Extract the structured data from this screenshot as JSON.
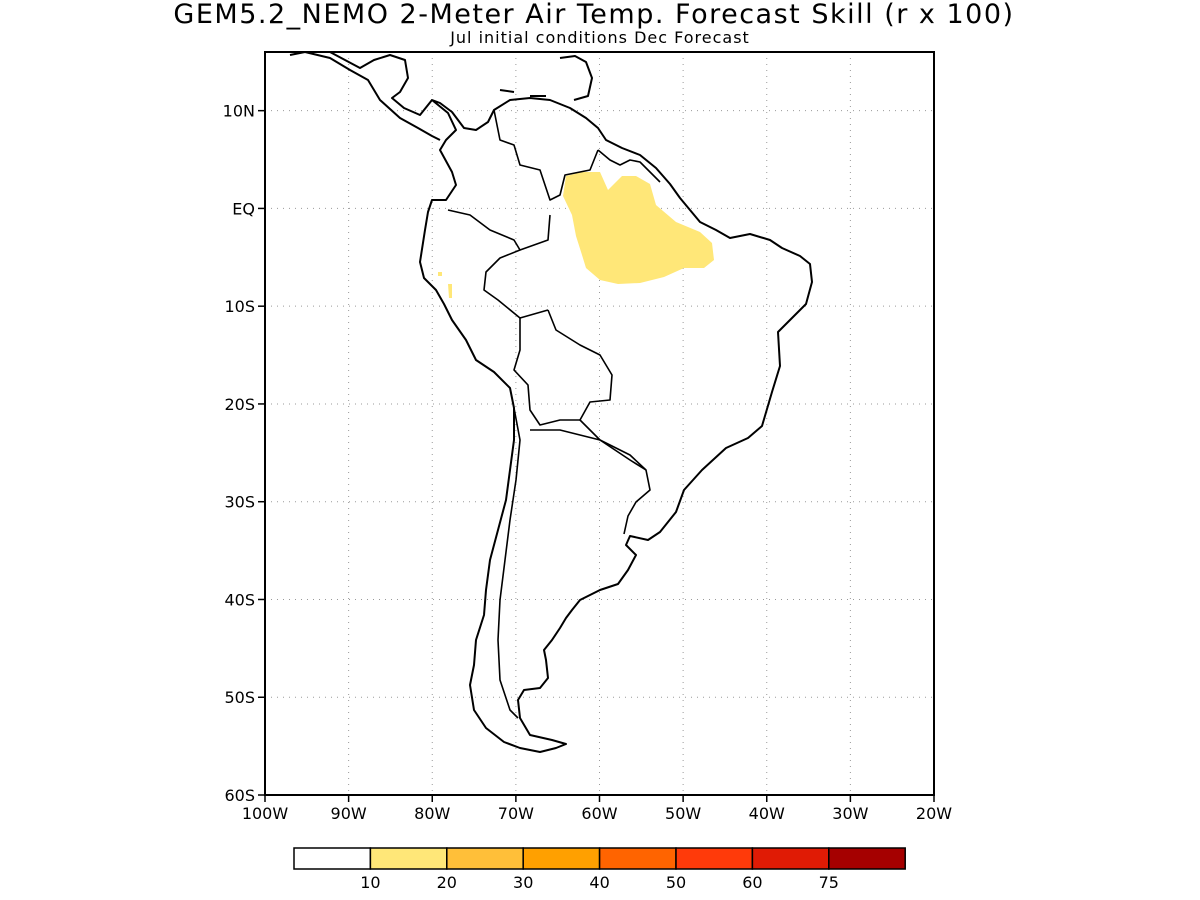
{
  "title": "GEM5.2_NEMO 2-Meter Air Temp. Forecast Skill (r x 100)",
  "subtitle": "Jul initial conditions  Dec Forecast",
  "map": {
    "lat_labels": [
      "10N",
      "EQ",
      "10S",
      "20S",
      "30S",
      "40S",
      "50S",
      "60S"
    ],
    "lat_values": [
      10,
      0,
      -10,
      -20,
      -30,
      -40,
      -50,
      -60
    ],
    "lon_labels": [
      "100W",
      "90W",
      "80W",
      "70W",
      "60W",
      "50W",
      "40W",
      "30W",
      "20W"
    ],
    "lon_values": [
      -100,
      -90,
      -80,
      -70,
      -60,
      -50,
      -40,
      -30,
      -20
    ],
    "lat_range": [
      -60,
      16
    ],
    "lon_range": [
      -100,
      -20
    ],
    "grid": true,
    "skill_regions": [
      {
        "name": "amazon-skill-region",
        "level": "10-20",
        "color": "#ffe778"
      }
    ]
  },
  "colorbar": {
    "colors": [
      "#ffffff",
      "#ffe778",
      "#ffbf39",
      "#ffa000",
      "#ff6400",
      "#ff3a0a",
      "#e01b05",
      "#a50000"
    ],
    "labels": [
      "10",
      "20",
      "30",
      "40",
      "50",
      "60",
      "75"
    ]
  }
}
